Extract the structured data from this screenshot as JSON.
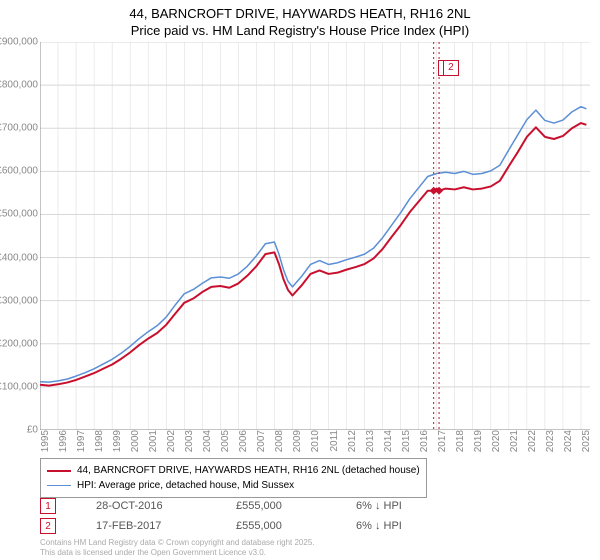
{
  "title_line1": "44, BARNCROFT DRIVE, HAYWARDS HEATH, RH16 2NL",
  "title_line2": "Price paid vs. HM Land Registry's House Price Index (HPI)",
  "chart": {
    "type": "line",
    "background_color": "#ffffff",
    "grid_color": "#d8d8d8",
    "axis_color": "#888888",
    "label_fontsize": 10,
    "label_color": "#888888",
    "title_fontsize": 13,
    "xlim": [
      1995,
      2025.5
    ],
    "ylim": [
      0,
      900000
    ],
    "ytick_step": 100000,
    "yticks": [
      "£0",
      "£100,000",
      "£200,000",
      "£300,000",
      "£400,000",
      "£500,000",
      "£600,000",
      "£700,000",
      "£800,000",
      "£900,000"
    ],
    "xticks": [
      "1995",
      "1996",
      "1997",
      "1998",
      "1999",
      "2000",
      "2001",
      "2002",
      "2003",
      "2004",
      "2005",
      "2006",
      "2007",
      "2008",
      "2009",
      "2010",
      "2011",
      "2012",
      "2013",
      "2014",
      "2015",
      "2016",
      "2017",
      "2018",
      "2019",
      "2020",
      "2021",
      "2022",
      "2023",
      "2024",
      "2025"
    ],
    "series": [
      {
        "name": "price_paid",
        "label": "44, BARNCROFT DRIVE, HAYWARDS HEATH, RH16 2NL (detached house)",
        "color": "#c8102e",
        "line_width": 2,
        "points": [
          [
            1995,
            105000
          ],
          [
            1995.5,
            103000
          ],
          [
            1996,
            106000
          ],
          [
            1996.5,
            110000
          ],
          [
            1997,
            116000
          ],
          [
            1997.5,
            124000
          ],
          [
            1998,
            132000
          ],
          [
            1998.5,
            142000
          ],
          [
            1999,
            152000
          ],
          [
            1999.5,
            165000
          ],
          [
            2000,
            180000
          ],
          [
            2000.5,
            197000
          ],
          [
            2001,
            212000
          ],
          [
            2001.5,
            225000
          ],
          [
            2002,
            244000
          ],
          [
            2002.5,
            270000
          ],
          [
            2003,
            295000
          ],
          [
            2003.5,
            305000
          ],
          [
            2004,
            320000
          ],
          [
            2004.5,
            332000
          ],
          [
            2005,
            334000
          ],
          [
            2005.5,
            330000
          ],
          [
            2006,
            340000
          ],
          [
            2006.5,
            358000
          ],
          [
            2007,
            380000
          ],
          [
            2007.5,
            408000
          ],
          [
            2008,
            412000
          ],
          [
            2008.25,
            385000
          ],
          [
            2008.5,
            350000
          ],
          [
            2008.75,
            325000
          ],
          [
            2009,
            312000
          ],
          [
            2009.5,
            335000
          ],
          [
            2010,
            362000
          ],
          [
            2010.5,
            370000
          ],
          [
            2011,
            362000
          ],
          [
            2011.5,
            365000
          ],
          [
            2012,
            372000
          ],
          [
            2012.5,
            378000
          ],
          [
            2013,
            385000
          ],
          [
            2013.5,
            398000
          ],
          [
            2014,
            420000
          ],
          [
            2014.5,
            448000
          ],
          [
            2015,
            475000
          ],
          [
            2015.5,
            505000
          ],
          [
            2016,
            530000
          ],
          [
            2016.5,
            555000
          ],
          [
            2016.83,
            555000
          ],
          [
            2017,
            560000
          ],
          [
            2017.13,
            555000
          ],
          [
            2017.5,
            560000
          ],
          [
            2018,
            558000
          ],
          [
            2018.5,
            563000
          ],
          [
            2019,
            558000
          ],
          [
            2019.5,
            560000
          ],
          [
            2020,
            565000
          ],
          [
            2020.5,
            578000
          ],
          [
            2021,
            612000
          ],
          [
            2021.5,
            645000
          ],
          [
            2022,
            680000
          ],
          [
            2022.5,
            702000
          ],
          [
            2023,
            680000
          ],
          [
            2023.5,
            675000
          ],
          [
            2024,
            682000
          ],
          [
            2024.5,
            700000
          ],
          [
            2025,
            712000
          ],
          [
            2025.3,
            708000
          ]
        ]
      },
      {
        "name": "hpi",
        "label": "HPI: Average price, detached house, Mid Sussex",
        "color": "#5b8fd6",
        "line_width": 1.5,
        "points": [
          [
            1995,
            112000
          ],
          [
            1995.5,
            111000
          ],
          [
            1996,
            114000
          ],
          [
            1996.5,
            118000
          ],
          [
            1997,
            125000
          ],
          [
            1997.5,
            133000
          ],
          [
            1998,
            142000
          ],
          [
            1998.5,
            153000
          ],
          [
            1999,
            164000
          ],
          [
            1999.5,
            178000
          ],
          [
            2000,
            194000
          ],
          [
            2000.5,
            212000
          ],
          [
            2001,
            228000
          ],
          [
            2001.5,
            242000
          ],
          [
            2002,
            262000
          ],
          [
            2002.5,
            290000
          ],
          [
            2003,
            316000
          ],
          [
            2003.5,
            326000
          ],
          [
            2004,
            340000
          ],
          [
            2004.5,
            353000
          ],
          [
            2005,
            355000
          ],
          [
            2005.5,
            352000
          ],
          [
            2006,
            362000
          ],
          [
            2006.5,
            380000
          ],
          [
            2007,
            404000
          ],
          [
            2007.5,
            432000
          ],
          [
            2008,
            436000
          ],
          [
            2008.25,
            408000
          ],
          [
            2008.5,
            372000
          ],
          [
            2008.75,
            345000
          ],
          [
            2009,
            332000
          ],
          [
            2009.5,
            356000
          ],
          [
            2010,
            384000
          ],
          [
            2010.5,
            393000
          ],
          [
            2011,
            384000
          ],
          [
            2011.5,
            388000
          ],
          [
            2012,
            395000
          ],
          [
            2012.5,
            401000
          ],
          [
            2013,
            408000
          ],
          [
            2013.5,
            422000
          ],
          [
            2014,
            446000
          ],
          [
            2014.5,
            475000
          ],
          [
            2015,
            504000
          ],
          [
            2015.5,
            536000
          ],
          [
            2016,
            562000
          ],
          [
            2016.5,
            588000
          ],
          [
            2017,
            595000
          ],
          [
            2017.5,
            598000
          ],
          [
            2018,
            595000
          ],
          [
            2018.5,
            600000
          ],
          [
            2019,
            593000
          ],
          [
            2019.5,
            595000
          ],
          [
            2020,
            601000
          ],
          [
            2020.5,
            614000
          ],
          [
            2021,
            650000
          ],
          [
            2021.5,
            685000
          ],
          [
            2022,
            720000
          ],
          [
            2022.5,
            742000
          ],
          [
            2023,
            718000
          ],
          [
            2023.5,
            712000
          ],
          [
            2024,
            719000
          ],
          [
            2024.5,
            738000
          ],
          [
            2025,
            750000
          ],
          [
            2025.3,
            745000
          ]
        ]
      }
    ],
    "sale_markers": [
      {
        "num": "1",
        "x": 2016.83,
        "y": 555000
      },
      {
        "num": "2",
        "x": 2017.13,
        "y": 555000
      }
    ],
    "sale_diamond_color": "#c8102e"
  },
  "legend": {
    "series1_label": "44, BARNCROFT DRIVE, HAYWARDS HEATH, RH16 2NL (detached house)",
    "series2_label": "HPI: Average price, detached house, Mid Sussex"
  },
  "sales": [
    {
      "num": "1",
      "date": "28-OCT-2016",
      "price": "£555,000",
      "delta": "6% ↓ HPI"
    },
    {
      "num": "2",
      "date": "17-FEB-2017",
      "price": "£555,000",
      "delta": "6% ↓ HPI"
    }
  ],
  "footer_line1": "Contains HM Land Registry data © Crown copyright and database right 2025.",
  "footer_line2": "This data is licensed under the Open Government Licence v3.0."
}
